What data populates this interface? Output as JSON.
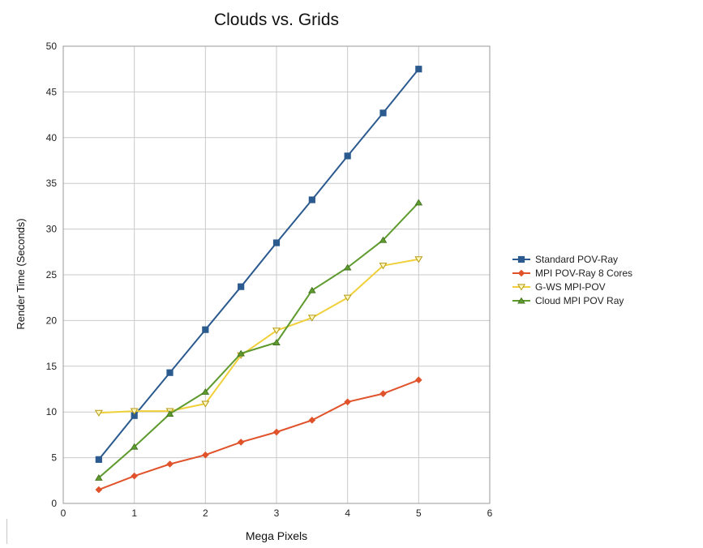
{
  "chart_data": {
    "type": "line",
    "title": "Clouds vs. Grids",
    "xlabel": "Mega Pixels",
    "ylabel": "Render Time (Seconds)",
    "xlim": [
      0,
      6
    ],
    "ylim": [
      0,
      50
    ],
    "x_ticks": [
      "0",
      "1",
      "2",
      "3",
      "4",
      "5",
      "6"
    ],
    "y_ticks": [
      "0",
      "5",
      "10",
      "15",
      "20",
      "25",
      "30",
      "35",
      "40",
      "45",
      "50"
    ],
    "grid": true,
    "legend_position": "right",
    "x": [
      0.5,
      1,
      1.5,
      2,
      2.5,
      3,
      3.5,
      4,
      4.5,
      5
    ],
    "series": [
      {
        "name": "Standard POV-Ray",
        "color": "#2b5a8f",
        "marker": "square",
        "values": [
          4.8,
          9.6,
          14.3,
          19.0,
          23.7,
          28.5,
          33.2,
          38.0,
          42.7,
          47.5
        ]
      },
      {
        "name": "MPI POV-Ray 8 Cores",
        "color": "#e0522a",
        "marker": "diamond",
        "values": [
          1.5,
          3.0,
          4.3,
          5.3,
          6.7,
          7.8,
          9.1,
          11.1,
          12.0,
          13.5
        ]
      },
      {
        "name": "G-WS MPI-POV",
        "color": "#f0d03a",
        "marker": "triangle-down",
        "values": [
          9.9,
          10.1,
          10.1,
          10.9,
          16.2,
          18.9,
          20.3,
          22.5,
          26.0,
          26.7
        ]
      },
      {
        "name": "Cloud MPI POV Ray",
        "color": "#5e9a2e",
        "marker": "triangle-up",
        "values": [
          2.8,
          6.2,
          9.8,
          12.2,
          16.4,
          17.6,
          23.3,
          25.8,
          28.8,
          32.9
        ]
      }
    ]
  }
}
